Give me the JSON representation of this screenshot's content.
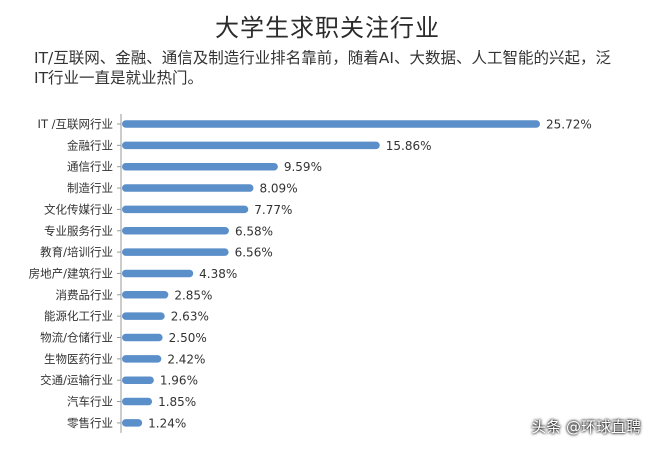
{
  "watermark": "头条 @环球直聘",
  "chart_data": {
    "type": "bar",
    "orientation": "horizontal",
    "title": "大学生求职关注行业",
    "subtitle": "IT/互联网、金融、通信及制造行业排名靠前，随着AI、大数据、人工智能的兴起，泛IT行业一直是就业热门。",
    "categories": [
      "IT /互联网行业",
      "金融行业",
      "通信行业",
      "制造行业",
      "文化传媒行业",
      "专业服务行业",
      "教育/培训行业",
      "房地产/建筑行业",
      "消费品行业",
      "能源化工行业",
      "物流/仓储行业",
      "生物医药行业",
      "交通/运输行业",
      "汽车行业",
      "零售行业"
    ],
    "values": [
      25.72,
      15.86,
      9.59,
      8.09,
      7.77,
      6.58,
      6.56,
      4.38,
      2.85,
      2.63,
      2.5,
      2.42,
      1.96,
      1.85,
      1.24
    ],
    "value_labels": [
      "25.72%",
      "15.86%",
      "9.59%",
      "8.09%",
      "7.77%",
      "6.58%",
      "6.56%",
      "4.38%",
      "2.85%",
      "2.63%",
      "2.50%",
      "2.42%",
      "1.96%",
      "1.85%",
      "1.24%"
    ],
    "bar_color": "#5b8fc9",
    "grid": false
  }
}
